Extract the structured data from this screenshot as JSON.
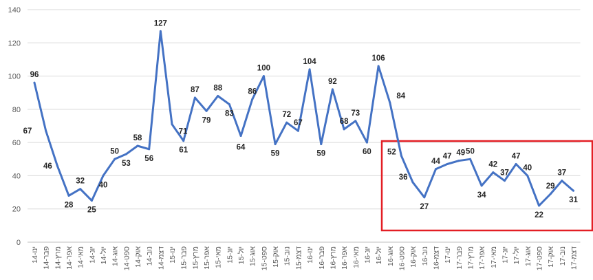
{
  "chart_data": {
    "type": "line",
    "categories": [
      "ינו-14",
      "פבר-14",
      "מרץ-14",
      "אפר-14",
      "מאי-14",
      "יונ-14",
      "יול-14",
      "אוג-14",
      "ספט-14",
      "אוק-14",
      "נוב-14",
      "דצמ-14",
      "ינו-15",
      "פבר-15",
      "מרץ-15",
      "אפר-15",
      "מאי-15",
      "יונ-15",
      "יול-15",
      "אוג-15",
      "ספט-15",
      "אוק-15",
      "נוב-15",
      "דצמ-15",
      "ינו-16",
      "פבר-16",
      "מרץ-16",
      "אפר-16",
      "מאי-16",
      "יונ-16",
      "יול-16",
      "אוג-16",
      "ספט-16",
      "אוק-16",
      "נוב-16",
      "דצמ-16",
      "ינו-17",
      "פבר-17",
      "מרץ-17",
      "אפר-17",
      "מאי-17",
      "יונ-17",
      "יול-17",
      "אוג-17",
      "ספט-17",
      "אוק-17",
      "נוב-17",
      "דצמ-17"
    ],
    "series": [
      {
        "values": [
          96,
          67,
          46,
          28,
          32,
          25,
          40,
          50,
          53,
          58,
          56,
          127,
          71,
          61,
          87,
          79,
          88,
          83,
          64,
          86,
          100,
          59,
          72,
          67,
          104,
          59,
          92,
          68,
          73,
          60,
          106,
          84,
          52,
          36,
          27,
          44,
          47,
          49,
          50,
          34,
          42,
          37,
          47,
          40,
          22,
          29,
          37,
          31
        ],
        "color": "#4472c4"
      }
    ],
    "y_ticks": [
      "0",
      "20",
      "40",
      "60",
      "80",
      "100",
      "120",
      "140"
    ],
    "ylim": [
      0,
      140
    ],
    "grid": true,
    "xlabel": "",
    "ylabel": "",
    "title": "",
    "highlight": {
      "from_category": "ספט-16",
      "to_category": "דצמ-17",
      "color": "#e31e24"
    }
  }
}
